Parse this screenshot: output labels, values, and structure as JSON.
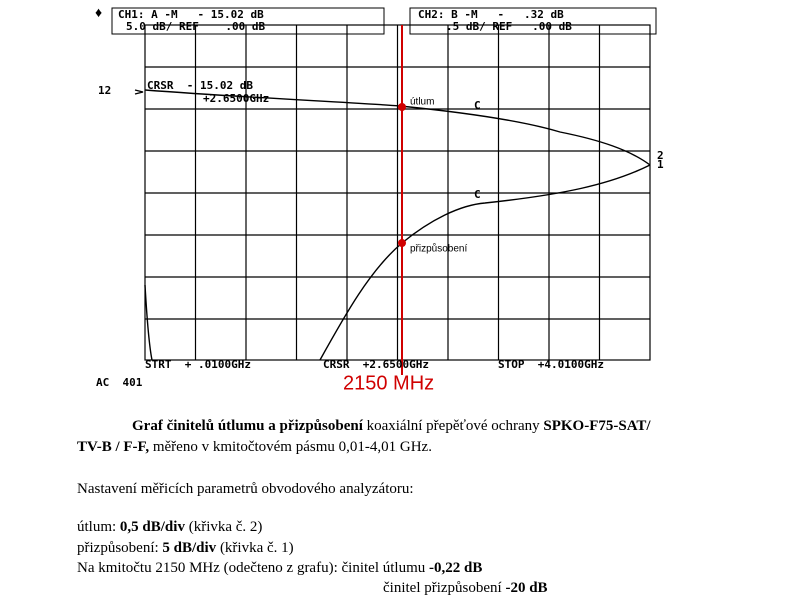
{
  "instrument": {
    "ch1_top": "CH1: A -M   - 15.02 dB",
    "ch1_bottom": "5.0 dB/ REF    .00 dB",
    "ch2_top": "CH2: B -M   -   .32 dB",
    "ch2_bottom": ".5 dB/ REF   .00 dB",
    "ref_level": "12",
    "cursor_value": "CRSR  - 15.02 dB",
    "cursor_freq": "+2.6500GHz",
    "label_attenuation": "útlum",
    "label_matching": "přizpůsobení",
    "marker_c1": "C",
    "marker_c2": "C",
    "trace_2": "2",
    "trace_1": "1",
    "start": "STRT  + .0100GHz",
    "cursor": "CRSR  +2.6500GHz",
    "stop": "STOP  +4.0100GHz",
    "frequency_marker": "2150 MHz",
    "averaging": "AC  401"
  },
  "caption": {
    "title_bold": "Graf činitelů útlumu a přizpůsobení",
    "title_rest": " koaxiální přepěťové ochrany ",
    "product_bold": "SPKO-F75-SAT/",
    "product_bold_2": "TV-B / F-F,",
    "range": " měřeno v kmitočtovém pásmu 0,01-4,01 GHz."
  },
  "settings": {
    "heading": "Nastavení měřicích parametrů obvodového analyzátoru:",
    "attenuation_label": "útlum: ",
    "attenuation_value": "0,5 dB/div",
    "attenuation_note": " (křivka č. 2)",
    "matching_label": "přizpůsobení: ",
    "matching_value": "5 dB/div",
    "matching_note": " (křivka č. 1)",
    "reading_label": "Na kmitočtu 2150 MHz (odečteno z grafu): činitel útlumu ",
    "reading_attenuation": "-0,22 dB",
    "reading_matching_label": "činitel přizpůsobení ",
    "reading_matching": "-20 dB"
  }
}
